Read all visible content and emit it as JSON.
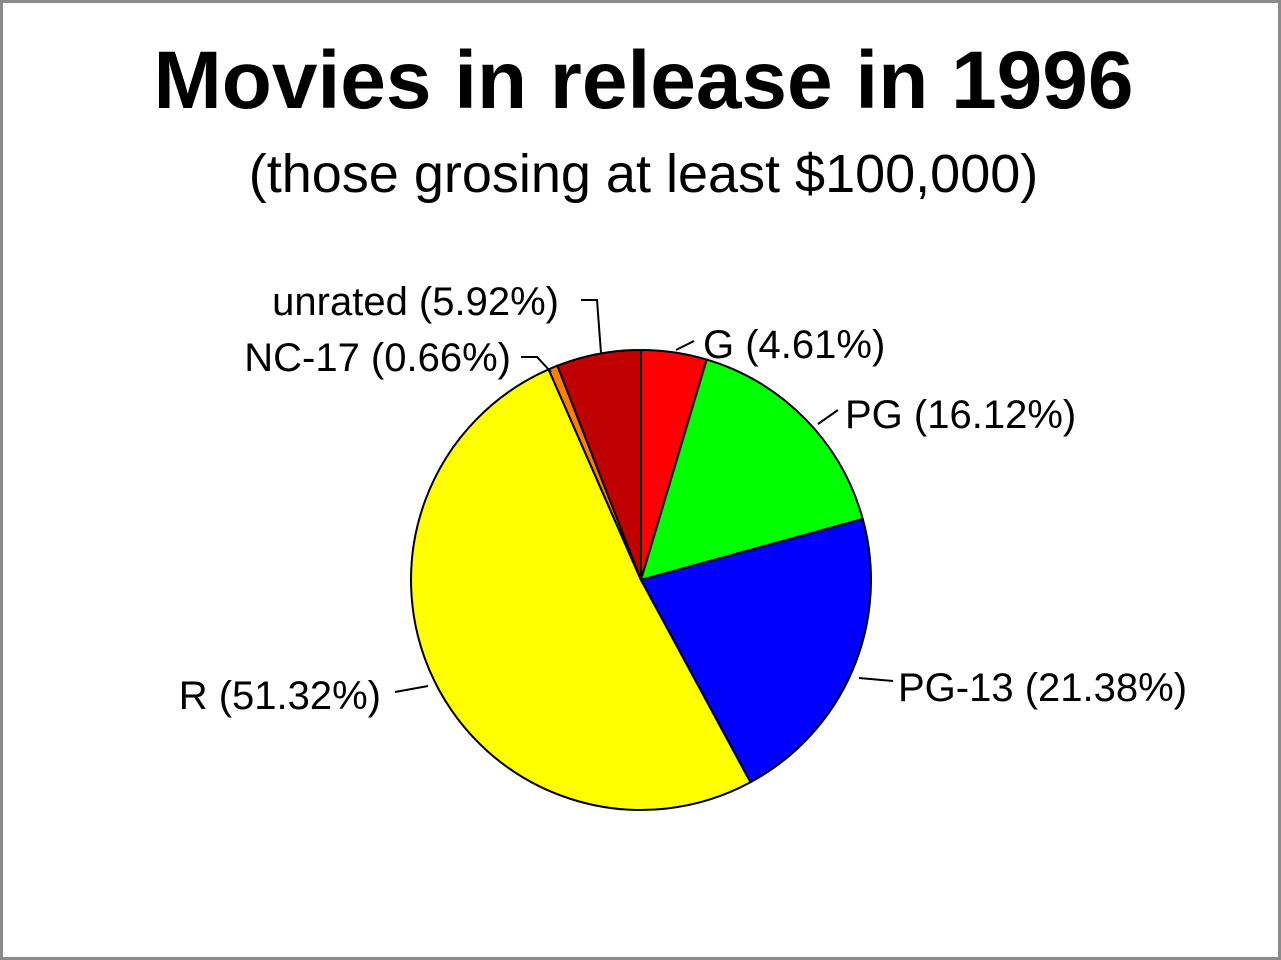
{
  "chart_data": {
    "type": "pie",
    "title": "Movies in release in 1996",
    "subtitle": "(those grosing at least $100,000)",
    "slices": [
      {
        "label": "G",
        "value": 4.61,
        "display": "G (4.61%)",
        "color": "#ff0000"
      },
      {
        "label": "PG",
        "value": 16.12,
        "display": "PG (16.12%)",
        "color": "#00ff00"
      },
      {
        "label": "PG-13",
        "value": 21.38,
        "display": "PG-13 (21.38%)",
        "color": "#0000ff"
      },
      {
        "label": "R",
        "value": 51.32,
        "display": "R (51.32%)",
        "color": "#ffff00"
      },
      {
        "label": "NC-17",
        "value": 0.66,
        "display": "NC-17 (0.66%)",
        "color": "#ff8000"
      },
      {
        "label": "unrated",
        "value": 5.92,
        "display": "unrated (5.92%)",
        "color": "#c00000"
      }
    ],
    "start": "12 o'clock",
    "direction": "clockwise",
    "legend": "none",
    "labels": "outside with leader lines"
  }
}
